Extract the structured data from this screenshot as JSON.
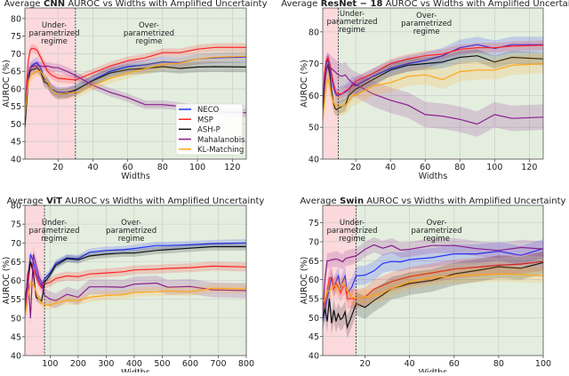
{
  "legend": {
    "placement": "lower-right of CNN panel",
    "entries": [
      "NECO",
      "MSP",
      "ASH-P",
      "Mahalanobis",
      "KL-Matching"
    ]
  },
  "series_colors": {
    "NECO": "#2233ff",
    "MSP": "#ff2222",
    "ASH-P": "#111111",
    "Mahalanobis": "#8b1c8e",
    "KL-Matching": "#ffa514"
  },
  "region_colors": {
    "under": "#fbd9dc",
    "over": "#e3eedf"
  },
  "chart_data": [
    {
      "type": "line",
      "title": {
        "prefix": "Average",
        "model": "CNN",
        "suffix": "AUROC vs Widths with Amplified Uncertainty"
      },
      "xlabel": "Widths",
      "ylabel": "AUROC (%)",
      "xlim": [
        1,
        128
      ],
      "ylim": [
        40,
        83
      ],
      "xticks": [
        20,
        40,
        60,
        80,
        100,
        120
      ],
      "yticks": [
        40,
        45,
        50,
        55,
        60,
        65,
        70,
        75,
        80
      ],
      "grid": true,
      "boundary": 30,
      "regions": {
        "under": [
          "Under-",
          "parametrized",
          "regime"
        ],
        "over": [
          "Over-",
          "parametrized",
          "regime"
        ]
      },
      "x": [
        1,
        2,
        3,
        4,
        5,
        6,
        8,
        10,
        12,
        14,
        16,
        18,
        20,
        25,
        30,
        40,
        50,
        60,
        70,
        80,
        90,
        100,
        110,
        128
      ],
      "series": [
        {
          "name": "NECO",
          "band": 1.5,
          "values": [
            50,
            58,
            64,
            66,
            66.5,
            67,
            67.5,
            66,
            63,
            62,
            60,
            59.5,
            59,
            59,
            59.5,
            62.5,
            65,
            66.3,
            66.8,
            67.7,
            67.5,
            68.5,
            68.8,
            69
          ]
        },
        {
          "name": "MSP",
          "band": 1.2,
          "values": [
            53,
            62,
            68,
            71,
            71.5,
            71.5,
            71,
            69,
            67,
            65,
            64,
            63.5,
            63,
            62.8,
            62.5,
            64.5,
            66.5,
            68,
            68.8,
            70.3,
            70.3,
            71.3,
            71.8,
            71.8
          ]
        },
        {
          "name": "ASH-P",
          "band": 1.5,
          "values": [
            49,
            56,
            62,
            65,
            65.5,
            65.5,
            66,
            65,
            62,
            61.5,
            60,
            59,
            58.5,
            58.7,
            59.7,
            62.3,
            64.5,
            65.5,
            65.8,
            66.3,
            65.8,
            66.2,
            66.3,
            66.2
          ]
        },
        {
          "name": "Mahalanobis",
          "band": 1.2,
          "values": [
            54,
            60,
            64,
            66,
            66.3,
            66.5,
            66.5,
            66.5,
            66.3,
            66.5,
            66.2,
            66,
            66,
            65,
            63.8,
            61,
            59,
            57.5,
            55.5,
            55.5,
            55,
            54,
            53.5,
            53.2
          ]
        },
        {
          "name": "KL-Matching",
          "band": 1.5,
          "values": [
            52,
            58,
            62,
            63.5,
            64,
            64.5,
            65,
            65,
            63.5,
            62,
            60,
            59,
            58.5,
            58.8,
            58.8,
            61,
            63,
            64.5,
            65.7,
            67,
            67.3,
            68.5,
            69,
            69.3
          ]
        }
      ]
    },
    {
      "type": "line",
      "title": {
        "prefix": "Average",
        "model": "ResNet − 18",
        "suffix": "AUROC vs Widths with Amplified Uncertainty"
      },
      "xlabel": "Widths",
      "ylabel": "AUROC (%)",
      "xlim": [
        1,
        128
      ],
      "ylim": [
        40,
        87.5
      ],
      "xticks": [
        20,
        40,
        60,
        80,
        100,
        120
      ],
      "yticks": [
        40,
        50,
        60,
        70,
        80
      ],
      "grid": true,
      "boundary": 10,
      "regions": {
        "under": [
          "Under-",
          "parametrized",
          "regime"
        ],
        "over": [
          "Over-",
          "parametrized",
          "regime"
        ]
      },
      "x": [
        1,
        2,
        3,
        4,
        5,
        6,
        7,
        8,
        9,
        10,
        12,
        14,
        16,
        18,
        20,
        30,
        40,
        50,
        60,
        70,
        80,
        90,
        100,
        110,
        128
      ],
      "series": [
        {
          "name": "NECO",
          "band": 2.5,
          "values": [
            55,
            66,
            70,
            71.5,
            69,
            66,
            63,
            61,
            60,
            60,
            60.5,
            61,
            62,
            63.5,
            63,
            66,
            68.5,
            70,
            71,
            72.5,
            75,
            76,
            74.8,
            76,
            76
          ]
        },
        {
          "name": "MSP",
          "band": 1.5,
          "values": [
            57,
            67,
            71,
            72,
            70,
            67,
            64,
            62,
            60.5,
            60.5,
            60.5,
            61.5,
            62,
            63,
            64.5,
            67,
            70,
            71.5,
            72.5,
            73,
            74.5,
            75,
            75,
            75.5,
            75.8
          ]
        },
        {
          "name": "ASH-P",
          "band": 2,
          "values": [
            54,
            63,
            68,
            69.5,
            67,
            62,
            58,
            56,
            55.5,
            56,
            56.5,
            57,
            60,
            61,
            62,
            65,
            68,
            69.5,
            70,
            70.5,
            72,
            72.5,
            70.5,
            72,
            71.5
          ]
        },
        {
          "name": "Mahalanobis",
          "band": 4,
          "values": [
            58,
            65,
            68,
            69,
            69,
            68.5,
            68,
            67.5,
            67,
            66.5,
            66,
            66.5,
            65,
            64,
            63.5,
            60.5,
            58.5,
            57,
            54,
            53.5,
            52.5,
            51,
            54,
            52.8,
            53.2
          ]
        },
        {
          "name": "KL-Matching",
          "band": 3,
          "values": [
            52,
            58,
            63,
            65.5,
            63,
            60,
            58,
            57,
            57,
            57,
            56.5,
            57,
            58,
            60,
            60,
            63,
            64,
            66,
            66.5,
            65,
            67.5,
            68,
            68,
            69.5,
            70
          ]
        }
      ]
    },
    {
      "type": "line",
      "title": {
        "prefix": "Average",
        "model": "ViT",
        "suffix": "AUROC vs Widths with Amplified Uncertainty"
      },
      "xlabel": "Widths",
      "ylabel": "AUROC (%)",
      "xlim": [
        10,
        800
      ],
      "ylim": [
        40,
        80
      ],
      "xticks": [
        100,
        200,
        300,
        400,
        500,
        600,
        700,
        800
      ],
      "yticks": [
        40,
        45,
        50,
        55,
        60,
        65,
        70,
        75,
        80
      ],
      "grid": true,
      "boundary": 80,
      "regions": {
        "under": [
          "Under-",
          "parametrized",
          "regime"
        ],
        "over": [
          "Over-",
          "parametrized",
          "regime"
        ]
      },
      "x": [
        10,
        20,
        30,
        40,
        50,
        60,
        70,
        80,
        100,
        120,
        160,
        200,
        240,
        300,
        360,
        400,
        480,
        520,
        600,
        680,
        800
      ],
      "series": [
        {
          "name": "NECO",
          "band": 1,
          "values": [
            55,
            60,
            67,
            65,
            62,
            60,
            58.5,
            60.5,
            62,
            64.5,
            66,
            65.8,
            67.5,
            68,
            68.2,
            68.5,
            69.3,
            69.3,
            69.5,
            69.8,
            70
          ]
        },
        {
          "name": "MSP",
          "band": 1.2,
          "values": [
            52,
            58,
            65,
            63,
            61,
            59,
            58,
            59,
            59.5,
            60.5,
            61.2,
            61,
            61.7,
            62,
            62.3,
            62.8,
            63,
            63.2,
            63.4,
            63.8,
            63.6
          ]
        },
        {
          "name": "ASH-P",
          "band": 1,
          "values": [
            53,
            61,
            65,
            62,
            55.5,
            55,
            54.5,
            59.5,
            61.5,
            64,
            65.8,
            65.5,
            66.5,
            67,
            67.3,
            67.3,
            68,
            68.2,
            68.6,
            69,
            69
          ]
        },
        {
          "name": "Mahalanobis",
          "band": 2,
          "values": [
            51,
            62,
            50,
            67,
            64,
            61,
            59.5,
            56,
            55,
            54.6,
            56.3,
            55.5,
            58.3,
            58.3,
            58.2,
            59,
            59.3,
            58.2,
            58.4,
            57.5,
            57.3
          ]
        },
        {
          "name": "KL-Matching",
          "band": 1.2,
          "values": [
            50,
            55,
            59.5,
            59,
            57,
            55,
            54,
            53.5,
            53.5,
            54,
            54.7,
            54.6,
            55.5,
            56,
            56.2,
            56.8,
            57,
            57.2,
            57,
            57.9,
            57.8
          ]
        }
      ]
    },
    {
      "type": "line",
      "title": {
        "prefix": "Average",
        "model": "Swin",
        "suffix": "AUROC vs Widths with Amplified Uncertainty"
      },
      "xlabel": "Widths",
      "ylabel": "AUROC (%)",
      "xlim": [
        1,
        100
      ],
      "ylim": [
        40,
        79.6
      ],
      "xticks": [
        20,
        40,
        60,
        80,
        100
      ],
      "yticks": [
        40,
        45,
        50,
        55,
        60,
        65,
        70,
        75
      ],
      "grid": true,
      "boundary": 16,
      "regions": {
        "under": [
          "Under-",
          "parametrized",
          "regime"
        ],
        "over": [
          "Over-",
          "parametrized",
          "regime"
        ]
      },
      "x": [
        1,
        2,
        3,
        4,
        5,
        6,
        7,
        8,
        9,
        10,
        11,
        12,
        14,
        16,
        20,
        24,
        28,
        32,
        36,
        40,
        50,
        60,
        70,
        80,
        90,
        100
      ],
      "series": [
        {
          "name": "NECO",
          "band": 2.5,
          "values": [
            49,
            52,
            55,
            58,
            60.7,
            58,
            59.5,
            61,
            58,
            59.5,
            61,
            56.5,
            58,
            61,
            61.2,
            62.3,
            64.3,
            64.8,
            64.7,
            65.3,
            65.8,
            66.8,
            66.8,
            67.5,
            66.4,
            68.2
          ]
        },
        {
          "name": "MSP",
          "band": 2.5,
          "values": [
            52,
            54,
            57,
            60.5,
            60.5,
            57.5,
            59,
            58,
            56.5,
            58,
            58.5,
            55,
            55,
            55,
            55.5,
            57.5,
            58.5,
            59.5,
            60.2,
            60.8,
            61.8,
            62.8,
            63.3,
            63.8,
            64.1,
            64.8
          ]
        },
        {
          "name": "ASH-P",
          "band": 3,
          "values": [
            50,
            52.5,
            49,
            55,
            48.5,
            52,
            49,
            51,
            49.5,
            50,
            51.5,
            47.5,
            50.5,
            53.7,
            52.7,
            54.5,
            56,
            57.8,
            58.3,
            59,
            59.8,
            61.5,
            62.4,
            63.4,
            63,
            64.5
          ]
        },
        {
          "name": "Mahalanobis",
          "band": 2,
          "values": [
            51,
            60,
            65,
            65,
            65.3,
            65.3,
            65.5,
            65.3,
            65,
            64.7,
            65.5,
            65.7,
            66,
            66.3,
            68,
            69.2,
            68.3,
            69,
            67.8,
            68,
            69,
            69,
            68.2,
            67.7,
            68.5,
            68.1
          ]
        },
        {
          "name": "KL-Matching",
          "band": 2,
          "values": [
            54,
            55,
            57,
            57,
            57.5,
            58.5,
            58.5,
            57.5,
            58.5,
            59,
            58.5,
            57,
            55.5,
            55,
            55.5,
            55.8,
            56.5,
            57.8,
            58.5,
            59.5,
            60.5,
            61,
            61.3,
            61.5,
            61.4,
            61
          ]
        }
      ]
    }
  ]
}
